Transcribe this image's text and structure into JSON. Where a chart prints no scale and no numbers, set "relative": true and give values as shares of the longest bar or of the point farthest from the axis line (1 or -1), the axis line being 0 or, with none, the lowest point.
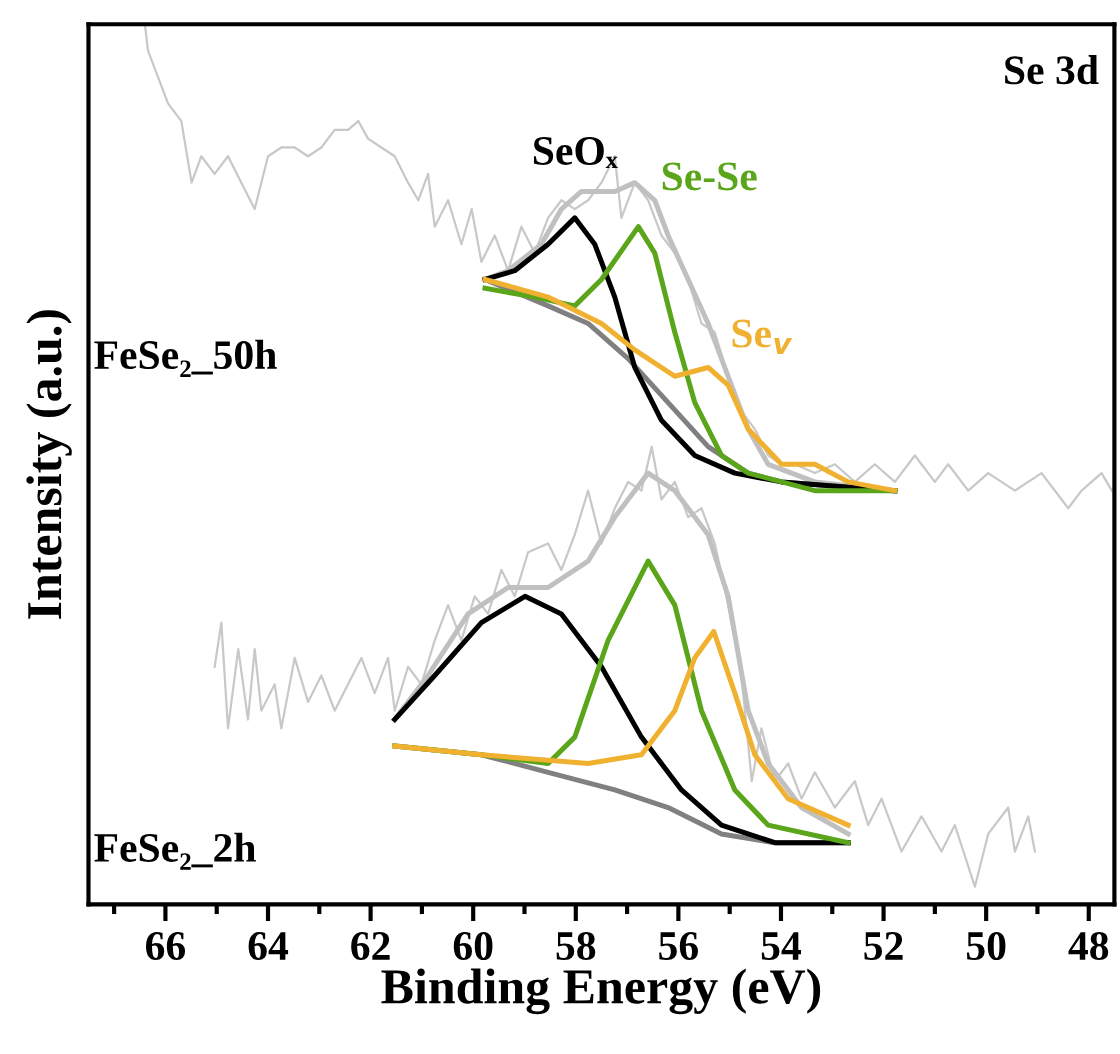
{
  "chart_data": {
    "type": "line",
    "relative": true,
    "xlabel": "Binding Energy (eV)",
    "ylabel": "Intensity (a.u.)",
    "xlim": [
      67.5,
      47.5
    ],
    "xticks": [
      {
        "value": 67,
        "label": null
      },
      66,
      {
        "value": 65,
        "label": null
      },
      64,
      {
        "value": 63,
        "label": null
      },
      62,
      {
        "value": 61,
        "label": null
      },
      60,
      {
        "value": 59,
        "label": null
      },
      58,
      {
        "value": 57,
        "label": null
      },
      56,
      {
        "value": 55,
        "label": null
      },
      54,
      {
        "value": 53,
        "label": null
      },
      52,
      {
        "value": 51,
        "label": null
      },
      50,
      {
        "value": 49,
        "label": null
      },
      48
    ],
    "tick_labels": "x",
    "grid": false,
    "marker": "none",
    "line_style": "solid",
    "annotations": [
      "Se 3d",
      "FeSe₂_50h",
      "FeSe₂_2h"
    ],
    "series": [
      {
        "color": "#c8c8c8",
        "x": [
          66.4,
          66.34,
          65.95,
          65.69,
          65.49,
          65.3,
          65.04,
          64.78,
          64.52,
          64.26,
          64.0,
          63.74,
          63.48,
          63.22,
          62.96,
          62.7,
          62.44,
          62.24,
          62.05,
          61.79,
          61.53,
          61.27,
          61.07,
          60.88,
          60.75,
          60.49,
          60.23,
          60.03,
          59.84,
          59.58,
          59.32,
          59.06,
          58.8,
          58.54,
          58.28,
          58.02,
          57.76,
          57.5,
          57.24,
          57.11,
          56.85,
          56.59,
          56.33,
          56.07,
          55.81,
          55.55,
          55.29,
          55.03,
          54.77,
          54.51,
          54.25,
          53.99,
          53.73,
          53.34,
          52.95,
          52.56,
          52.17,
          51.78,
          51.39,
          51.0,
          50.74,
          50.35,
          49.96,
          49.44,
          48.92,
          48.4,
          48.14,
          47.75,
          47.55
        ],
        "values": [
          1.0,
          0.97,
          0.91,
          0.89,
          0.82,
          0.85,
          0.83,
          0.85,
          0.82,
          0.79,
          0.85,
          0.86,
          0.86,
          0.85,
          0.86,
          0.88,
          0.88,
          0.89,
          0.87,
          0.86,
          0.85,
          0.82,
          0.8,
          0.83,
          0.77,
          0.8,
          0.75,
          0.79,
          0.73,
          0.76,
          0.72,
          0.77,
          0.74,
          0.78,
          0.8,
          0.79,
          0.8,
          0.82,
          0.85,
          0.78,
          0.82,
          0.8,
          0.76,
          0.74,
          0.71,
          0.66,
          0.65,
          0.6,
          0.56,
          0.54,
          0.51,
          0.5,
          0.5,
          0.49,
          0.5,
          0.48,
          0.5,
          0.48,
          0.51,
          0.48,
          0.5,
          0.47,
          0.49,
          0.47,
          0.49,
          0.45,
          0.47,
          0.49,
          0.47
        ]
      },
      {
        "color": "#c0c0c0",
        "x": [
          59.77,
          59.32,
          58.67,
          58.28,
          57.89,
          57.24,
          56.85,
          56.46,
          56.2,
          55.81,
          55.42,
          55.03,
          54.64,
          54.25,
          53.34,
          51.78
        ],
        "values": [
          0.71,
          0.72,
          0.75,
          0.79,
          0.81,
          0.81,
          0.82,
          0.8,
          0.76,
          0.71,
          0.66,
          0.6,
          0.54,
          0.5,
          0.48,
          0.47
        ]
      },
      {
        "color": "#808080",
        "x": [
          59.77,
          58.54,
          57.76,
          56.98,
          56.2,
          55.42,
          54.64,
          53.99,
          51.78
        ],
        "values": [
          0.71,
          0.68,
          0.66,
          0.62,
          0.57,
          0.52,
          0.49,
          0.48,
          0.47
        ]
      },
      {
        "name": "SeOₓ",
        "color": "#000000",
        "x": [
          59.77,
          59.19,
          58.54,
          58.02,
          57.63,
          57.24,
          56.85,
          56.33,
          55.68,
          54.9,
          53.99,
          51.78
        ],
        "values": [
          0.71,
          0.72,
          0.75,
          0.78,
          0.75,
          0.69,
          0.61,
          0.55,
          0.51,
          0.49,
          0.48,
          0.47
        ]
      },
      {
        "name": "Se-Se",
        "color": "#5aa51a",
        "x": [
          59.77,
          58.8,
          58.02,
          57.5,
          56.78,
          56.46,
          56.07,
          55.68,
          55.16,
          54.64,
          53.34,
          51.78
        ],
        "values": [
          0.7,
          0.69,
          0.68,
          0.71,
          0.77,
          0.74,
          0.65,
          0.57,
          0.51,
          0.49,
          0.47,
          0.47
        ]
      },
      {
        "name": "Se$_{v}$",
        "color": "#f0b030",
        "x": [
          59.77,
          58.54,
          57.5,
          56.85,
          56.07,
          55.42,
          55.03,
          54.64,
          53.99,
          53.34,
          52.69,
          51.78
        ],
        "values": [
          0.71,
          0.69,
          0.66,
          0.63,
          0.6,
          0.61,
          0.59,
          0.54,
          0.5,
          0.5,
          0.48,
          0.47
        ]
      },
      {
        "color": "#c8c8c8",
        "x": [
          65.04,
          64.91,
          64.78,
          64.58,
          64.39,
          64.26,
          64.13,
          63.87,
          63.74,
          63.48,
          63.22,
          62.96,
          62.7,
          62.44,
          62.18,
          61.92,
          61.66,
          61.53,
          61.27,
          61.01,
          60.75,
          60.49,
          60.23,
          59.97,
          59.71,
          59.45,
          59.19,
          58.93,
          58.54,
          58.28,
          58.02,
          57.76,
          57.5,
          57.24,
          56.98,
          56.72,
          56.52,
          56.33,
          56.07,
          55.81,
          55.55,
          55.29,
          55.03,
          54.77,
          54.57,
          54.38,
          54.12,
          53.86,
          53.6,
          53.34,
          52.95,
          52.56,
          52.3,
          52.04,
          51.65,
          51.26,
          50.87,
          50.61,
          50.22,
          49.96,
          49.57,
          49.44,
          49.18,
          49.05
        ],
        "values": [
          0.27,
          0.32,
          0.2,
          0.29,
          0.21,
          0.29,
          0.22,
          0.25,
          0.2,
          0.28,
          0.23,
          0.26,
          0.22,
          0.25,
          0.28,
          0.24,
          0.28,
          0.22,
          0.27,
          0.25,
          0.3,
          0.34,
          0.3,
          0.35,
          0.33,
          0.38,
          0.35,
          0.4,
          0.41,
          0.38,
          0.42,
          0.47,
          0.41,
          0.45,
          0.48,
          0.47,
          0.52,
          0.46,
          0.48,
          0.44,
          0.45,
          0.41,
          0.34,
          0.26,
          0.14,
          0.2,
          0.14,
          0.16,
          0.12,
          0.15,
          0.11,
          0.14,
          0.09,
          0.12,
          0.06,
          0.1,
          0.06,
          0.09,
          0.02,
          0.08,
          0.11,
          0.06,
          0.1,
          0.06
        ]
      },
      {
        "color": "#c0c0c0",
        "x": [
          61.53,
          60.88,
          60.1,
          59.32,
          58.54,
          57.76,
          57.24,
          56.59,
          56.07,
          55.42,
          55.03,
          54.64,
          54.25,
          53.6,
          52.69
        ],
        "values": [
          0.21,
          0.26,
          0.33,
          0.36,
          0.36,
          0.39,
          0.44,
          0.49,
          0.47,
          0.42,
          0.35,
          0.22,
          0.16,
          0.11,
          0.08
        ]
      },
      {
        "color": "#808080",
        "x": [
          61.53,
          59.84,
          58.54,
          57.24,
          56.2,
          55.16,
          54.12,
          52.69
        ],
        "values": [
          0.18,
          0.17,
          0.15,
          0.13,
          0.11,
          0.08,
          0.07,
          0.07
        ]
      },
      {
        "color": "#000000",
        "x": [
          61.53,
          60.75,
          59.84,
          58.99,
          58.28,
          57.5,
          56.72,
          55.94,
          55.16,
          54.12,
          52.69
        ],
        "values": [
          0.21,
          0.26,
          0.32,
          0.35,
          0.33,
          0.27,
          0.19,
          0.13,
          0.09,
          0.07,
          0.07
        ]
      },
      {
        "color": "#5aa51a",
        "x": [
          61.53,
          59.84,
          58.54,
          58.02,
          57.37,
          56.59,
          56.07,
          55.55,
          54.9,
          54.25,
          52.69
        ],
        "values": [
          0.18,
          0.17,
          0.16,
          0.19,
          0.3,
          0.39,
          0.34,
          0.22,
          0.13,
          0.09,
          0.07
        ]
      },
      {
        "color": "#f0b030",
        "x": [
          61.53,
          59.84,
          57.76,
          56.72,
          56.07,
          55.68,
          55.31,
          54.9,
          54.51,
          53.86,
          52.69
        ],
        "values": [
          0.18,
          0.17,
          0.16,
          0.17,
          0.22,
          0.28,
          0.31,
          0.24,
          0.17,
          0.12,
          0.09
        ]
      }
    ]
  }
}
